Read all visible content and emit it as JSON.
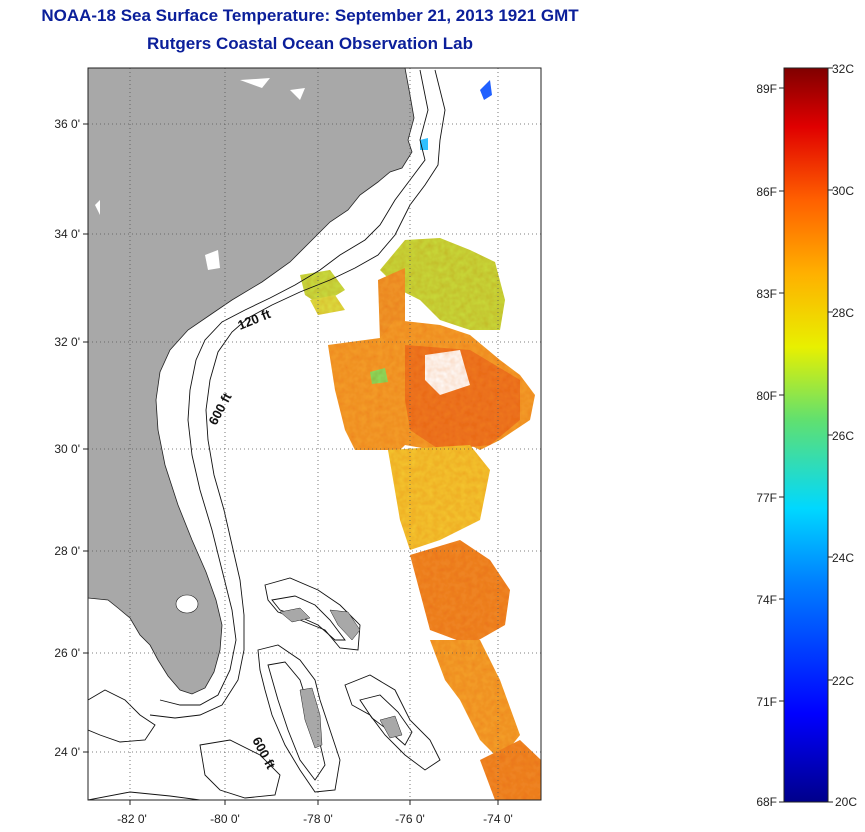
{
  "header": {
    "title": "NOAA-18 Sea Surface Temperature:  September 21, 2013 1921 GMT",
    "subtitle": "Rutgers Coastal Ocean Observation Lab"
  },
  "map": {
    "lat_labels": [
      "36 0'",
      "34 0'",
      "32 0'",
      "30 0'",
      "28 0'",
      "26 0'",
      "24 0'"
    ],
    "lon_labels": [
      "-82 0'",
      "-80 0'",
      "-78 0'",
      "-76 0'",
      "-74 0'"
    ],
    "lat_range": [
      23,
      37.1
    ],
    "lon_range": [
      -83,
      -73
    ],
    "depth_labels": [
      "120 ft",
      "600 ft",
      "600 ft"
    ],
    "colors": {
      "land": "#a8a8a8",
      "ocean": "#ffffff",
      "title": "#0b1f9a"
    }
  },
  "colorbar": {
    "range_c": [
      20,
      32
    ],
    "celsius_labels": [
      "32C",
      "30C",
      "28C",
      "26C",
      "24C",
      "22C",
      "20C"
    ],
    "fahrenheit_labels": [
      "89F",
      "86F",
      "83F",
      "80F",
      "77F",
      "74F",
      "71F",
      "68F"
    ]
  }
}
